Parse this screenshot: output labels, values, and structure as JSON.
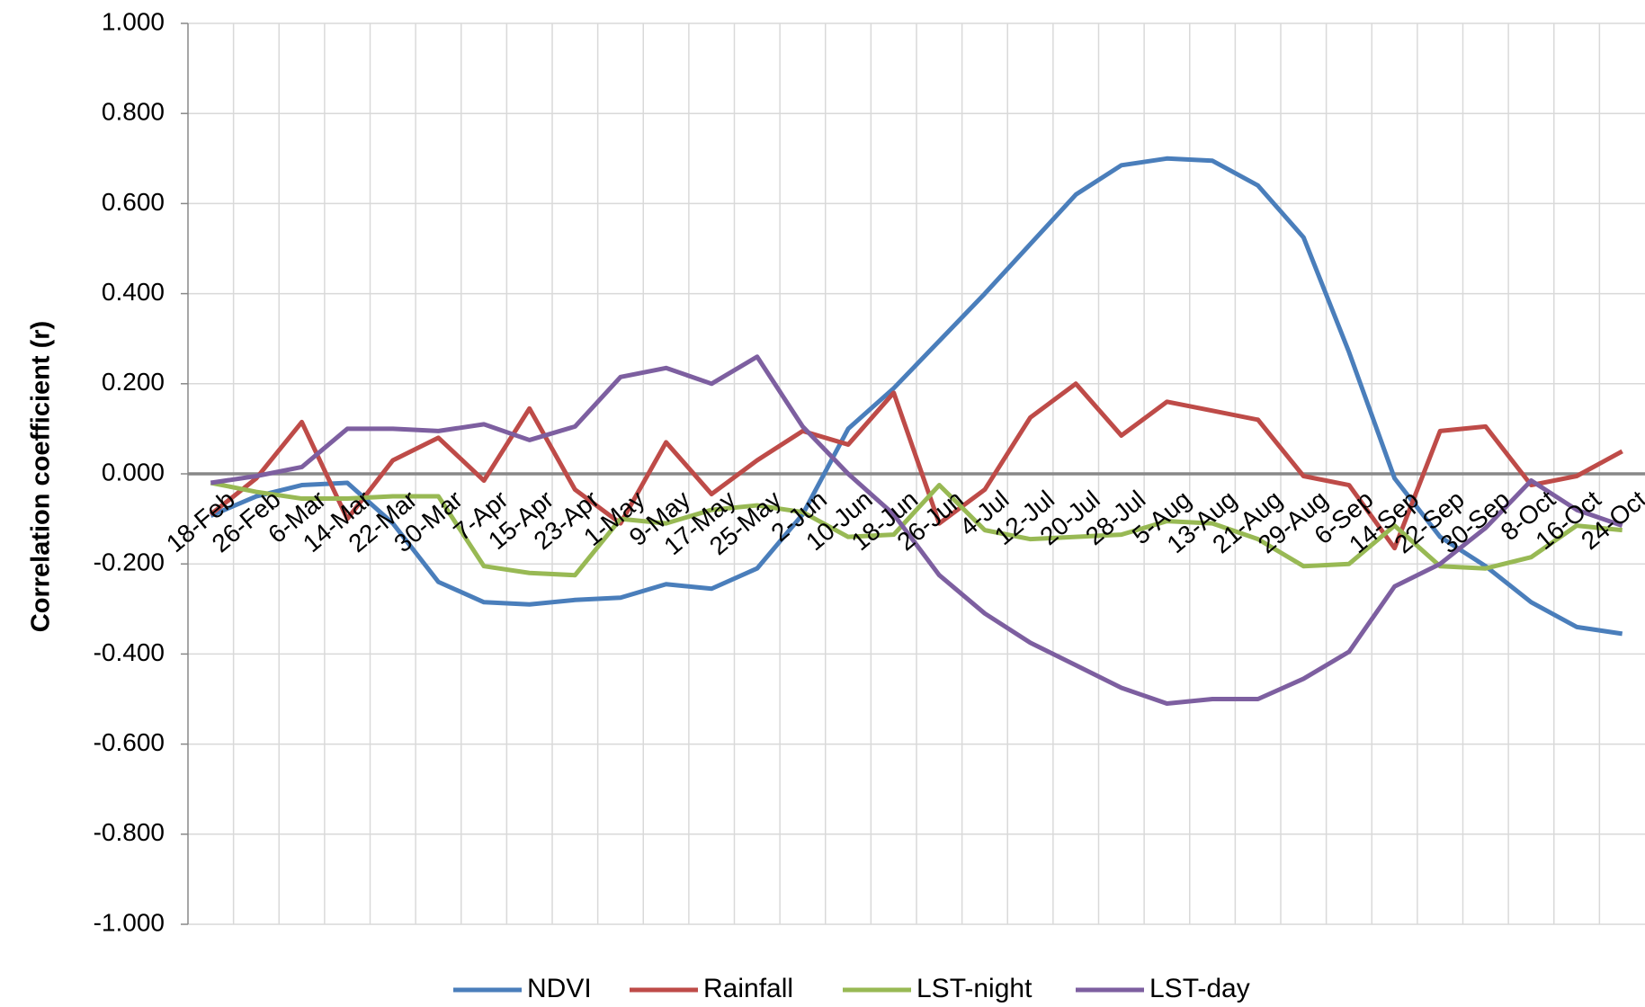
{
  "chart_data": {
    "type": "line",
    "y_axis_label": "Correlation coefficient (r)",
    "categories": [
      "18-Feb",
      "26-Feb",
      "6-Mar",
      "14-Mar",
      "22-Mar",
      "30-Mar",
      "7-Apr",
      "15-Apr",
      "23-Apr",
      "1-May",
      "9-May",
      "17-May",
      "25-May",
      "2-Jun",
      "10-Jun",
      "18-Jun",
      "26-Jun",
      "4-Jul",
      "12-Jul",
      "20-Jul",
      "28-Jul",
      "5-Aug",
      "13-Aug",
      "21-Aug",
      "29-Aug",
      "6-Sep",
      "14-Sep",
      "22-Sep",
      "30-Sep",
      "8-Oct",
      "16-Oct",
      "24-Oct"
    ],
    "series": [
      {
        "name": "NDVI",
        "color": "#4a7ebb",
        "values": [
          -0.093,
          -0.05,
          -0.025,
          -0.02,
          -0.11,
          -0.24,
          -0.285,
          -0.29,
          -0.28,
          -0.275,
          -0.245,
          -0.255,
          -0.21,
          -0.09,
          0.1,
          0.19,
          0.295,
          0.4,
          0.51,
          0.62,
          0.685,
          0.7,
          0.695,
          0.64,
          0.525,
          0.27,
          -0.01,
          -0.14,
          -0.205,
          -0.285,
          -0.34,
          -0.355
        ]
      },
      {
        "name": "Rainfall",
        "color": "#be4b48",
        "values": [
          -0.09,
          -0.01,
          0.115,
          -0.1,
          0.03,
          0.08,
          -0.015,
          0.145,
          -0.035,
          -0.11,
          0.07,
          -0.045,
          0.03,
          0.095,
          0.065,
          0.18,
          -0.11,
          -0.035,
          0.125,
          0.2,
          0.085,
          0.16,
          0.14,
          0.12,
          -0.005,
          -0.025,
          -0.165,
          0.095,
          0.105,
          -0.025,
          -0.005,
          0.05
        ]
      },
      {
        "name": "LST-night",
        "color": "#98b954",
        "values": [
          -0.02,
          -0.04,
          -0.055,
          -0.055,
          -0.05,
          -0.05,
          -0.205,
          -0.22,
          -0.225,
          -0.1,
          -0.11,
          -0.08,
          -0.07,
          -0.085,
          -0.14,
          -0.135,
          -0.025,
          -0.125,
          -0.145,
          -0.14,
          -0.135,
          -0.105,
          -0.11,
          -0.145,
          -0.205,
          -0.2,
          -0.115,
          -0.205,
          -0.21,
          -0.185,
          -0.115,
          -0.125
        ]
      },
      {
        "name": "LST-day",
        "color": "#7d5fa0",
        "values": [
          -0.02,
          -0.005,
          0.015,
          0.1,
          0.1,
          0.095,
          0.11,
          0.075,
          0.105,
          0.215,
          0.235,
          0.2,
          0.26,
          0.105,
          0.0,
          -0.09,
          -0.225,
          -0.31,
          -0.375,
          -0.425,
          -0.475,
          -0.51,
          -0.5,
          -0.5,
          -0.455,
          -0.395,
          -0.25,
          -0.2,
          -0.12,
          -0.015,
          -0.08,
          -0.115
        ]
      }
    ],
    "ylim": [
      -1,
      1
    ],
    "yticks": [
      {
        "value": -1,
        "label": "-1.000"
      },
      {
        "value": -0.8,
        "label": "-0.800"
      },
      {
        "value": -0.6,
        "label": "-0.600"
      },
      {
        "value": -0.4,
        "label": "-0.400"
      },
      {
        "value": -0.2,
        "label": "-0.200"
      },
      {
        "value": 0,
        "label": "0.000"
      },
      {
        "value": 0.2,
        "label": "0.200"
      },
      {
        "value": 0.4,
        "label": "0.400"
      },
      {
        "value": 0.6,
        "label": "0.600"
      },
      {
        "value": 0.8,
        "label": "0.800"
      },
      {
        "value": 1,
        "label": "1.000"
      }
    ],
    "grid": true,
    "legend": "bottom"
  }
}
